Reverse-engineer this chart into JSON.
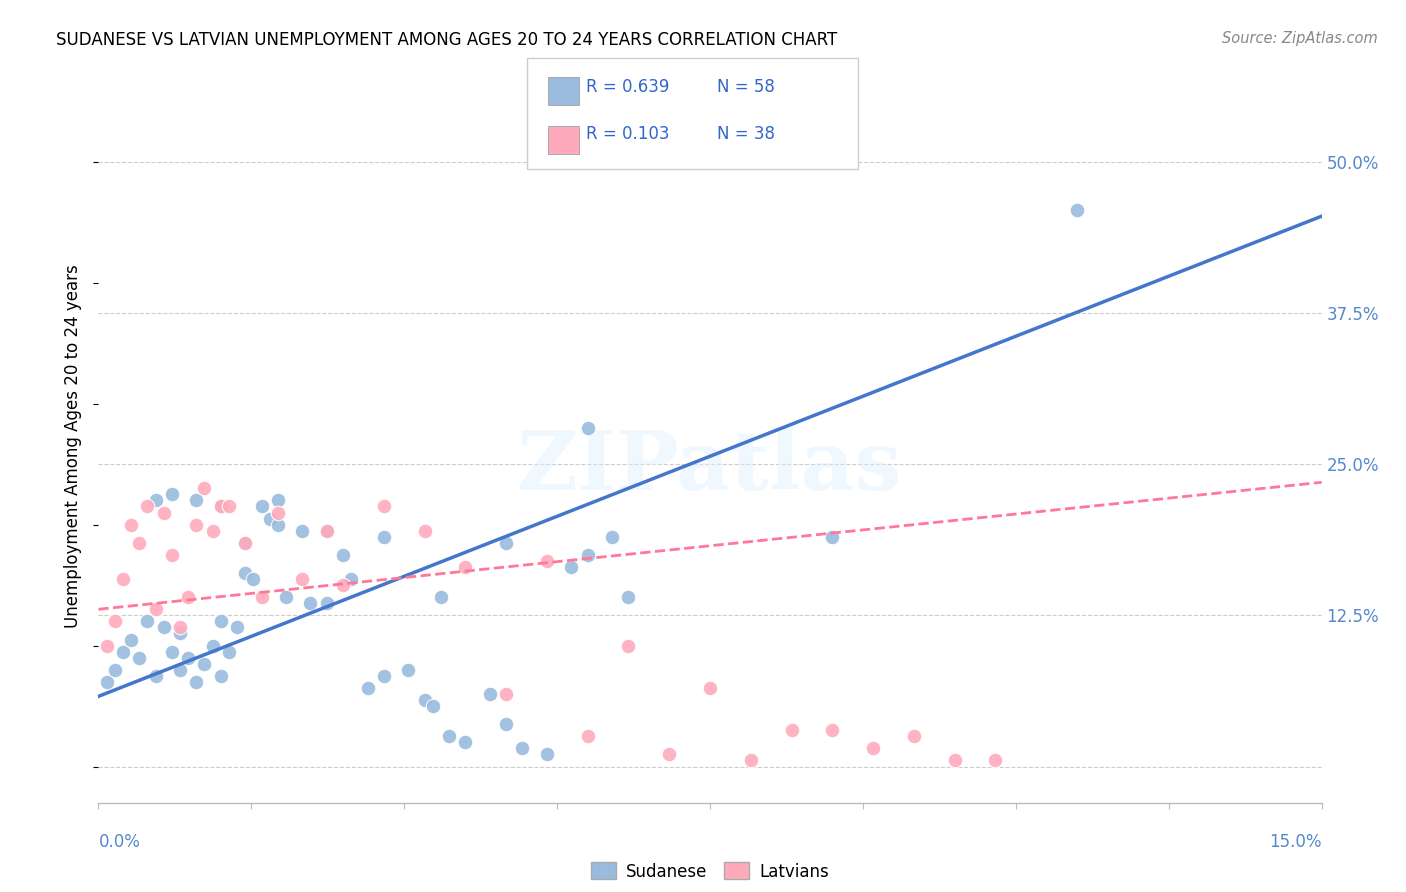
{
  "title": "SUDANESE VS LATVIAN UNEMPLOYMENT AMONG AGES 20 TO 24 YEARS CORRELATION CHART",
  "source": "Source: ZipAtlas.com",
  "ylabel": "Unemployment Among Ages 20 to 24 years",
  "xlim": [
    0.0,
    0.15
  ],
  "ylim": [
    -0.03,
    0.56
  ],
  "yticks": [
    0.0,
    0.125,
    0.25,
    0.375,
    0.5
  ],
  "ytick_labels": [
    "",
    "12.5%",
    "25.0%",
    "37.5%",
    "50.0%"
  ],
  "xtick_left": "0.0%",
  "xtick_right": "15.0%",
  "watermark": "ZIPatlas",
  "sudanese_color": "#99BBDD",
  "latvian_color": "#FFAABB",
  "sudanese_line_color": "#4477CC",
  "latvian_line_color": "#FF7799",
  "legend_color": "#3366CC",
  "R_sudanese": "0.639",
  "N_sudanese": "58",
  "R_latvians": "0.103",
  "N_latvians": "38",
  "sudanese_x": [
    0.001,
    0.002,
    0.003,
    0.004,
    0.005,
    0.006,
    0.007,
    0.008,
    0.009,
    0.01,
    0.01,
    0.011,
    0.012,
    0.013,
    0.014,
    0.015,
    0.015,
    0.016,
    0.017,
    0.018,
    0.019,
    0.02,
    0.021,
    0.022,
    0.023,
    0.025,
    0.026,
    0.028,
    0.03,
    0.031,
    0.033,
    0.035,
    0.038,
    0.04,
    0.041,
    0.043,
    0.045,
    0.048,
    0.05,
    0.052,
    0.055,
    0.058,
    0.06,
    0.063,
    0.065,
    0.007,
    0.009,
    0.012,
    0.015,
    0.018,
    0.022,
    0.028,
    0.035,
    0.042,
    0.05,
    0.06,
    0.09,
    0.12
  ],
  "sudanese_y": [
    0.07,
    0.08,
    0.095,
    0.105,
    0.09,
    0.12,
    0.075,
    0.115,
    0.095,
    0.08,
    0.11,
    0.09,
    0.07,
    0.085,
    0.1,
    0.12,
    0.075,
    0.095,
    0.115,
    0.16,
    0.155,
    0.215,
    0.205,
    0.22,
    0.14,
    0.195,
    0.135,
    0.135,
    0.175,
    0.155,
    0.065,
    0.075,
    0.08,
    0.055,
    0.05,
    0.025,
    0.02,
    0.06,
    0.035,
    0.015,
    0.01,
    0.165,
    0.175,
    0.19,
    0.14,
    0.22,
    0.225,
    0.22,
    0.215,
    0.185,
    0.2,
    0.195,
    0.19,
    0.14,
    0.185,
    0.28,
    0.19,
    0.46
  ],
  "latvian_x": [
    0.001,
    0.002,
    0.003,
    0.004,
    0.005,
    0.006,
    0.007,
    0.008,
    0.009,
    0.01,
    0.011,
    0.012,
    0.013,
    0.014,
    0.015,
    0.016,
    0.018,
    0.02,
    0.022,
    0.025,
    0.028,
    0.03,
    0.035,
    0.04,
    0.045,
    0.05,
    0.055,
    0.06,
    0.065,
    0.07,
    0.075,
    0.08,
    0.085,
    0.09,
    0.095,
    0.1,
    0.105,
    0.11
  ],
  "latvian_y": [
    0.1,
    0.12,
    0.155,
    0.2,
    0.185,
    0.215,
    0.13,
    0.21,
    0.175,
    0.115,
    0.14,
    0.2,
    0.23,
    0.195,
    0.215,
    0.215,
    0.185,
    0.14,
    0.21,
    0.155,
    0.195,
    0.15,
    0.215,
    0.195,
    0.165,
    0.06,
    0.17,
    0.025,
    0.1,
    0.01,
    0.065,
    0.005,
    0.03,
    0.03,
    0.015,
    0.025,
    0.005,
    0.005
  ],
  "sudanese_trend_x": [
    0.0,
    0.15
  ],
  "sudanese_trend_y": [
    0.058,
    0.455
  ],
  "latvian_trend_x": [
    0.0,
    0.15
  ],
  "latvian_trend_y": [
    0.13,
    0.235
  ]
}
